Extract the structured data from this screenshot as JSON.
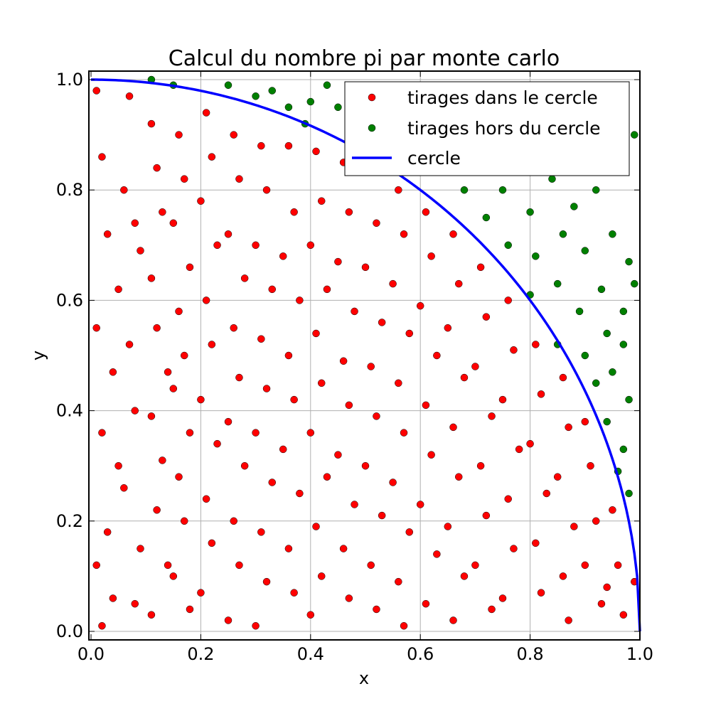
{
  "chart_data": {
    "type": "scatter",
    "title": "Calcul du nombre pi par monte carlo",
    "xlabel": "x",
    "ylabel": "y",
    "xlim": [
      0.0,
      1.0
    ],
    "ylim": [
      0.0,
      1.0
    ],
    "x_ticks": [
      "0.0",
      "0.2",
      "0.4",
      "0.6",
      "0.8",
      "1.0"
    ],
    "y_ticks": [
      "0.0",
      "0.2",
      "0.4",
      "0.6",
      "0.8",
      "1.0"
    ],
    "grid": true,
    "legend_position": "top-right",
    "series": [
      {
        "name": "tirages dans le cercle",
        "color": "#ff0000",
        "marker": "circle",
        "points": [
          [
            0.01,
            0.98
          ],
          [
            0.02,
            0.86
          ],
          [
            0.03,
            0.72
          ],
          [
            0.05,
            0.62
          ],
          [
            0.01,
            0.55
          ],
          [
            0.04,
            0.47
          ],
          [
            0.02,
            0.36
          ],
          [
            0.05,
            0.3
          ],
          [
            0.03,
            0.18
          ],
          [
            0.01,
            0.12
          ],
          [
            0.04,
            0.06
          ],
          [
            0.02,
            0.01
          ],
          [
            0.07,
            0.97
          ],
          [
            0.08,
            0.74
          ],
          [
            0.06,
            0.8
          ],
          [
            0.09,
            0.69
          ],
          [
            0.07,
            0.52
          ],
          [
            0.08,
            0.4
          ],
          [
            0.06,
            0.26
          ],
          [
            0.09,
            0.15
          ],
          [
            0.08,
            0.05
          ],
          [
            0.11,
            0.92
          ],
          [
            0.12,
            0.84
          ],
          [
            0.13,
            0.76
          ],
          [
            0.11,
            0.64
          ],
          [
            0.12,
            0.55
          ],
          [
            0.14,
            0.47
          ],
          [
            0.11,
            0.39
          ],
          [
            0.13,
            0.31
          ],
          [
            0.12,
            0.22
          ],
          [
            0.14,
            0.12
          ],
          [
            0.11,
            0.03
          ],
          [
            0.16,
            0.9
          ],
          [
            0.17,
            0.82
          ],
          [
            0.15,
            0.74
          ],
          [
            0.18,
            0.66
          ],
          [
            0.16,
            0.58
          ],
          [
            0.17,
            0.5
          ],
          [
            0.15,
            0.44
          ],
          [
            0.18,
            0.36
          ],
          [
            0.16,
            0.28
          ],
          [
            0.17,
            0.2
          ],
          [
            0.15,
            0.1
          ],
          [
            0.18,
            0.04
          ],
          [
            0.21,
            0.94
          ],
          [
            0.22,
            0.86
          ],
          [
            0.2,
            0.78
          ],
          [
            0.23,
            0.7
          ],
          [
            0.21,
            0.6
          ],
          [
            0.22,
            0.52
          ],
          [
            0.2,
            0.42
          ],
          [
            0.23,
            0.34
          ],
          [
            0.21,
            0.24
          ],
          [
            0.22,
            0.16
          ],
          [
            0.2,
            0.07
          ],
          [
            0.26,
            0.9
          ],
          [
            0.27,
            0.82
          ],
          [
            0.25,
            0.72
          ],
          [
            0.28,
            0.64
          ],
          [
            0.26,
            0.55
          ],
          [
            0.27,
            0.46
          ],
          [
            0.25,
            0.38
          ],
          [
            0.28,
            0.3
          ],
          [
            0.26,
            0.2
          ],
          [
            0.27,
            0.12
          ],
          [
            0.25,
            0.02
          ],
          [
            0.31,
            0.88
          ],
          [
            0.32,
            0.8
          ],
          [
            0.3,
            0.7
          ],
          [
            0.33,
            0.62
          ],
          [
            0.31,
            0.53
          ],
          [
            0.32,
            0.44
          ],
          [
            0.3,
            0.36
          ],
          [
            0.33,
            0.27
          ],
          [
            0.31,
            0.18
          ],
          [
            0.32,
            0.09
          ],
          [
            0.3,
            0.01
          ],
          [
            0.36,
            0.88
          ],
          [
            0.37,
            0.76
          ],
          [
            0.35,
            0.68
          ],
          [
            0.38,
            0.6
          ],
          [
            0.36,
            0.5
          ],
          [
            0.37,
            0.42
          ],
          [
            0.35,
            0.33
          ],
          [
            0.38,
            0.25
          ],
          [
            0.36,
            0.15
          ],
          [
            0.37,
            0.07
          ],
          [
            0.41,
            0.87
          ],
          [
            0.42,
            0.78
          ],
          [
            0.4,
            0.7
          ],
          [
            0.43,
            0.62
          ],
          [
            0.41,
            0.54
          ],
          [
            0.42,
            0.45
          ],
          [
            0.4,
            0.36
          ],
          [
            0.43,
            0.28
          ],
          [
            0.41,
            0.19
          ],
          [
            0.42,
            0.1
          ],
          [
            0.4,
            0.03
          ],
          [
            0.46,
            0.85
          ],
          [
            0.47,
            0.76
          ],
          [
            0.45,
            0.67
          ],
          [
            0.48,
            0.58
          ],
          [
            0.46,
            0.49
          ],
          [
            0.47,
            0.41
          ],
          [
            0.45,
            0.32
          ],
          [
            0.48,
            0.23
          ],
          [
            0.46,
            0.15
          ],
          [
            0.47,
            0.06
          ],
          [
            0.51,
            0.84
          ],
          [
            0.52,
            0.74
          ],
          [
            0.5,
            0.66
          ],
          [
            0.53,
            0.56
          ],
          [
            0.51,
            0.48
          ],
          [
            0.52,
            0.39
          ],
          [
            0.5,
            0.3
          ],
          [
            0.53,
            0.21
          ],
          [
            0.51,
            0.12
          ],
          [
            0.52,
            0.04
          ],
          [
            0.56,
            0.8
          ],
          [
            0.57,
            0.72
          ],
          [
            0.55,
            0.63
          ],
          [
            0.58,
            0.54
          ],
          [
            0.56,
            0.45
          ],
          [
            0.57,
            0.36
          ],
          [
            0.55,
            0.27
          ],
          [
            0.58,
            0.18
          ],
          [
            0.56,
            0.09
          ],
          [
            0.57,
            0.01
          ],
          [
            0.61,
            0.76
          ],
          [
            0.62,
            0.68
          ],
          [
            0.6,
            0.59
          ],
          [
            0.63,
            0.5
          ],
          [
            0.61,
            0.41
          ],
          [
            0.62,
            0.32
          ],
          [
            0.6,
            0.23
          ],
          [
            0.63,
            0.14
          ],
          [
            0.61,
            0.05
          ],
          [
            0.66,
            0.72
          ],
          [
            0.67,
            0.63
          ],
          [
            0.65,
            0.55
          ],
          [
            0.68,
            0.46
          ],
          [
            0.66,
            0.37
          ],
          [
            0.67,
            0.28
          ],
          [
            0.65,
            0.19
          ],
          [
            0.68,
            0.1
          ],
          [
            0.66,
            0.02
          ],
          [
            0.71,
            0.66
          ],
          [
            0.72,
            0.57
          ],
          [
            0.7,
            0.48
          ],
          [
            0.73,
            0.39
          ],
          [
            0.71,
            0.3
          ],
          [
            0.72,
            0.21
          ],
          [
            0.7,
            0.12
          ],
          [
            0.73,
            0.04
          ],
          [
            0.76,
            0.6
          ],
          [
            0.77,
            0.51
          ],
          [
            0.75,
            0.42
          ],
          [
            0.78,
            0.33
          ],
          [
            0.76,
            0.24
          ],
          [
            0.77,
            0.15
          ],
          [
            0.75,
            0.06
          ],
          [
            0.81,
            0.52
          ],
          [
            0.82,
            0.43
          ],
          [
            0.8,
            0.34
          ],
          [
            0.83,
            0.25
          ],
          [
            0.81,
            0.16
          ],
          [
            0.82,
            0.07
          ],
          [
            0.86,
            0.46
          ],
          [
            0.87,
            0.37
          ],
          [
            0.85,
            0.28
          ],
          [
            0.88,
            0.19
          ],
          [
            0.86,
            0.1
          ],
          [
            0.87,
            0.02
          ],
          [
            0.9,
            0.38
          ],
          [
            0.91,
            0.3
          ],
          [
            0.92,
            0.2
          ],
          [
            0.9,
            0.12
          ],
          [
            0.93,
            0.05
          ],
          [
            0.95,
            0.22
          ],
          [
            0.96,
            0.12
          ],
          [
            0.94,
            0.08
          ],
          [
            0.97,
            0.03
          ],
          [
            0.99,
            0.09
          ]
        ]
      },
      {
        "name": "tirages hors du cercle",
        "color": "#008000",
        "marker": "circle",
        "points": [
          [
            0.11,
            1.0
          ],
          [
            0.15,
            0.99
          ],
          [
            0.25,
            0.99
          ],
          [
            0.3,
            0.97
          ],
          [
            0.33,
            0.98
          ],
          [
            0.36,
            0.95
          ],
          [
            0.4,
            0.96
          ],
          [
            0.43,
            0.99
          ],
          [
            0.45,
            0.95
          ],
          [
            0.39,
            0.92
          ],
          [
            0.55,
            0.97
          ],
          [
            0.6,
            0.98
          ],
          [
            0.64,
            0.93
          ],
          [
            0.69,
            0.95
          ],
          [
            0.73,
            0.97
          ],
          [
            0.58,
            0.9
          ],
          [
            0.65,
            0.88
          ],
          [
            0.72,
            0.9
          ],
          [
            0.78,
            0.92
          ],
          [
            0.68,
            0.8
          ],
          [
            0.72,
            0.75
          ],
          [
            0.75,
            0.8
          ],
          [
            0.8,
            0.76
          ],
          [
            0.84,
            0.82
          ],
          [
            0.88,
            0.77
          ],
          [
            0.92,
            0.8
          ],
          [
            0.96,
            0.84
          ],
          [
            0.99,
            0.9
          ],
          [
            0.76,
            0.7
          ],
          [
            0.81,
            0.68
          ],
          [
            0.86,
            0.72
          ],
          [
            0.9,
            0.69
          ],
          [
            0.95,
            0.72
          ],
          [
            0.98,
            0.67
          ],
          [
            0.8,
            0.61
          ],
          [
            0.85,
            0.63
          ],
          [
            0.89,
            0.58
          ],
          [
            0.93,
            0.62
          ],
          [
            0.97,
            0.58
          ],
          [
            0.99,
            0.63
          ],
          [
            0.85,
            0.52
          ],
          [
            0.9,
            0.5
          ],
          [
            0.94,
            0.54
          ],
          [
            0.97,
            0.52
          ],
          [
            0.92,
            0.45
          ],
          [
            0.95,
            0.47
          ],
          [
            0.98,
            0.42
          ],
          [
            0.94,
            0.38
          ],
          [
            0.97,
            0.33
          ],
          [
            0.96,
            0.29
          ],
          [
            0.98,
            0.25
          ]
        ]
      },
      {
        "name": "cercle",
        "color": "#0000ff",
        "marker": "line",
        "function": "y = sqrt(1 - x^2)"
      }
    ]
  }
}
